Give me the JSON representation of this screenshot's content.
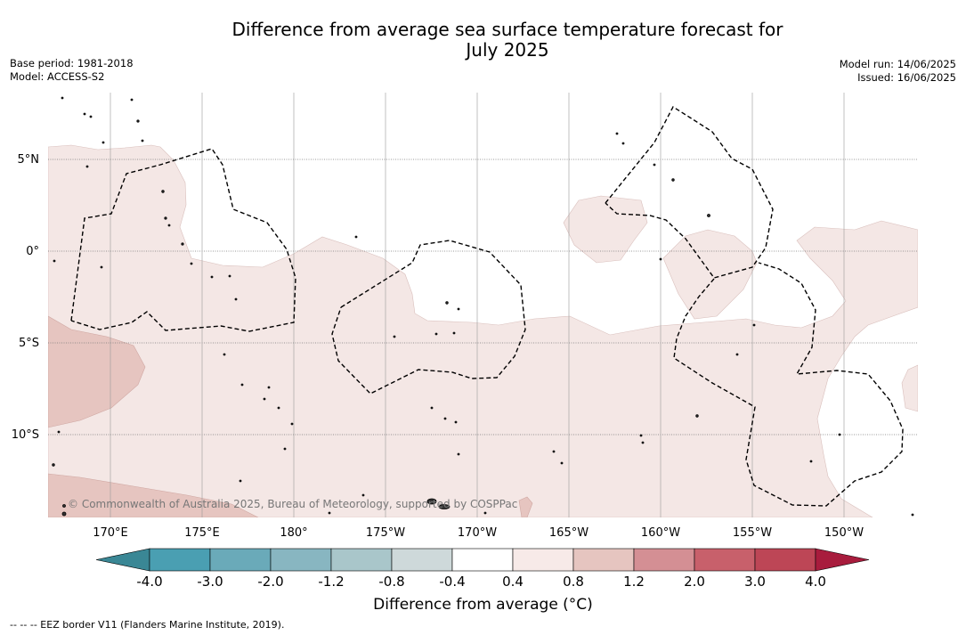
{
  "figure": {
    "title_line1": "Difference from average sea surface temperature forecast for",
    "title_line2": "July 2025",
    "base_period": "Base period: 1981-2018",
    "model": "Model: ACCESS-S2",
    "model_run": "Model run: 14/06/2025",
    "issued": "Issued: 16/06/2025",
    "copyright": "© Commonwealth of Australia 2025, Bureau of Meteorology, supported by COSPPac",
    "footnote": "-- -- -- EEZ border V11 (Flanders Marine Institute, 2019)."
  },
  "axes": {
    "lat_labels": [
      "5°N",
      "0°",
      "5°S",
      "10°S"
    ],
    "lon_labels": [
      "170°E",
      "175°E",
      "180°",
      "175°W",
      "170°W",
      "165°W",
      "160°W",
      "155°W",
      "150°W"
    ]
  },
  "colorbar": {
    "title": "Difference from average (°C)",
    "tick_labels": [
      "-4.0",
      "-3.0",
      "-2.0",
      "-1.2",
      "-0.8",
      "-0.4",
      "0.4",
      "0.8",
      "1.2",
      "2.0",
      "3.0",
      "4.0"
    ],
    "colors": [
      "#4a9fb2",
      "#6aaab9",
      "#88b6c1",
      "#a9c6ca",
      "#ced9da",
      "#ffffff",
      "#f7eae8",
      "#e6c5c0",
      "#d48f94",
      "#c8606b",
      "#bd4656"
    ],
    "under_color": "#3a8795",
    "over_color": "#a81c3d"
  }
}
